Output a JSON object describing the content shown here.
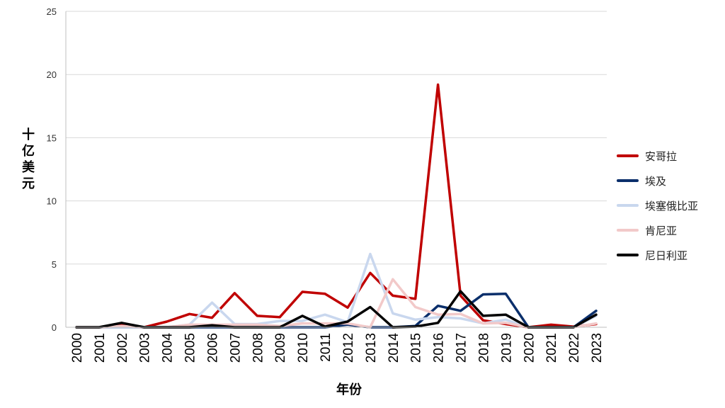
{
  "chart_data": {
    "type": "line",
    "xlabel": "年份",
    "ylabel": "十亿美元",
    "ylim": [
      0,
      25
    ],
    "yticks": [
      0,
      5,
      10,
      15,
      20,
      25
    ],
    "grid": true,
    "legend_position": "right",
    "categories": [
      "2000",
      "2001",
      "2002",
      "2003",
      "2004",
      "2005",
      "2006",
      "2007",
      "2008",
      "2009",
      "2010",
      "2011",
      "2012",
      "2013",
      "2014",
      "2015",
      "2016",
      "2017",
      "2018",
      "2019",
      "2020",
      "2021",
      "2022",
      "2023"
    ],
    "series": [
      {
        "name": "安哥拉",
        "color": "#c00000",
        "values": [
          0,
          0,
          0.2,
          0,
          0.45,
          1.05,
          0.75,
          2.7,
          0.9,
          0.8,
          2.8,
          2.65,
          1.55,
          4.3,
          2.5,
          2.25,
          19.2,
          2.5,
          0.55,
          0.25,
          0,
          0.2,
          0.05,
          0.25
        ]
      },
      {
        "name": "埃及",
        "color": "#0b2f6b",
        "values": [
          0,
          0,
          0,
          0,
          0,
          0,
          0,
          0,
          0,
          0,
          0,
          0,
          0.2,
          0,
          0,
          0.1,
          1.7,
          1.3,
          2.6,
          2.65,
          0,
          0,
          0,
          1.3
        ]
      },
      {
        "name": "埃塞俄比亚",
        "color": "#c9d7ee",
        "values": [
          0,
          0,
          0,
          0,
          0,
          0.2,
          1.95,
          0.25,
          0.25,
          0.5,
          0.5,
          1.0,
          0.4,
          5.8,
          1.1,
          0.6,
          0.8,
          0.7,
          0.3,
          0.6,
          0,
          0,
          0,
          0.9
        ]
      },
      {
        "name": "肯尼亚",
        "color": "#f2c9c9",
        "values": [
          0,
          0,
          0.1,
          0,
          0,
          0.2,
          0.2,
          0.2,
          0.2,
          0.1,
          0.3,
          0.3,
          0.3,
          0,
          3.8,
          1.6,
          1.0,
          1.05,
          0.3,
          0.35,
          0,
          0,
          0,
          0.3
        ]
      },
      {
        "name": "尼日利亚",
        "color": "#000000",
        "values": [
          0,
          0,
          0.35,
          0,
          0,
          0,
          0.15,
          0,
          0,
          0,
          0.9,
          0.05,
          0.45,
          1.6,
          0,
          0.05,
          0.35,
          2.85,
          0.9,
          1.0,
          0,
          0,
          0,
          1.0
        ]
      }
    ]
  }
}
